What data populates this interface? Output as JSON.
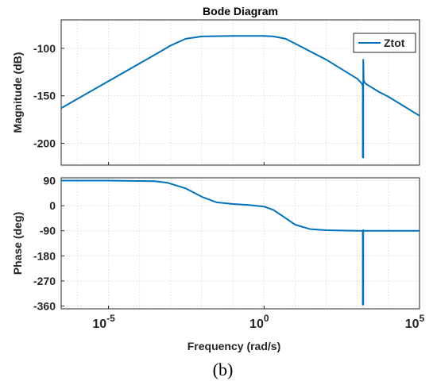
{
  "chart_data": {
    "type": "line",
    "title": "Bode Diagram",
    "caption": "(b)",
    "xlabel": "Frequency  (rad/s)",
    "x_scale": "log",
    "xlim": [
      3e-07,
      100000
    ],
    "x_ticks": [
      {
        "value": 1e-05,
        "base": "10",
        "exp": "-5"
      },
      {
        "value": 1,
        "base": "10",
        "exp": "0"
      },
      {
        "value": 100000,
        "base": "10",
        "exp": "5"
      }
    ],
    "grid": true,
    "legend_position": "top-right",
    "colors": {
      "series": "#0072bd",
      "axis": "#262626",
      "grid": "#dfdfdf"
    },
    "series": [
      {
        "name": "Ztot"
      }
    ],
    "panels": [
      {
        "id": "magnitude",
        "ylabel": "Magnitude (dB)",
        "ylim": [
          -223,
          -70
        ],
        "y_ticks": [
          -100,
          -150,
          -200
        ],
        "y_tick_labels": [
          "-100",
          "-150",
          "-200"
        ],
        "x": [
          3e-07,
          0.0003,
          0.001,
          0.003,
          0.01,
          0.1,
          1,
          2,
          5,
          10,
          100,
          1000,
          1400,
          1500,
          1500,
          1550,
          1550,
          1600,
          1700,
          2000,
          5000,
          10000,
          100000
        ],
        "y": [
          -163,
          -107,
          -97,
          -90,
          -87.5,
          -87,
          -87,
          -87.5,
          -90,
          -95,
          -112,
          -132,
          -137,
          -140,
          -215,
          -215,
          -112,
          -133,
          -136,
          -138,
          -146,
          -151,
          -171
        ]
      },
      {
        "id": "phase",
        "ylabel": "Phase (deg)",
        "ylim": [
          -370,
          100
        ],
        "y_ticks": [
          90,
          0,
          -90,
          -180,
          -270,
          -360
        ],
        "y_tick_labels": [
          "90",
          "0",
          "-90",
          "-180",
          "-270",
          "-360"
        ],
        "x": [
          3e-07,
          1e-05,
          0.0003,
          0.0008,
          0.003,
          0.01,
          0.03,
          0.1,
          0.3,
          1,
          2,
          5,
          10,
          30,
          100,
          300,
          1000,
          1500,
          1500,
          1550,
          1550,
          1600,
          2000,
          10000,
          100000
        ],
        "y": [
          90,
          90,
          88,
          82,
          62,
          32,
          12,
          6,
          3,
          -3,
          -15,
          -45,
          -68,
          -84,
          -88,
          -89,
          -90,
          -90,
          -355,
          -355,
          -88,
          -90,
          -90,
          -90,
          -90
        ]
      }
    ]
  }
}
